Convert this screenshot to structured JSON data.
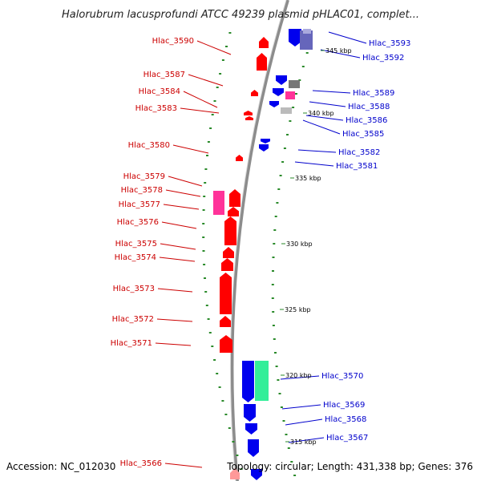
{
  "title": "Halorubrum lacusprofundi ATCC 49239 plasmid pHLAC01, complet...",
  "accession": "Accession: NC_012030",
  "footer_info": "Topology: circular; Length: 431,338 bp; Genes: 376",
  "colors": {
    "forward": "#ff0000",
    "reverse": "#0000ee",
    "magenta": "#ff3399",
    "teal": "#33ee99",
    "gray": "#777777",
    "lightgray": "#bbbbbb",
    "dots": "#2a8a2a",
    "backbone": "#999999",
    "label_forward": "#cc0000",
    "label_reverse": "#0000cc"
  },
  "ticks": [
    "345 kbp",
    "340 kbp",
    "335 kbp",
    "330 kbp",
    "325 kbp",
    "320 kbp",
    "315 kbp"
  ],
  "labels_left": [
    "Hlac_3590",
    "Hlac_3587",
    "Hlac_3584",
    "Hlac_3583",
    "Hlac_3580",
    "Hlac_3579",
    "Hlac_3578",
    "Hlac_3577",
    "Hlac_3576",
    "Hlac_3575",
    "Hlac_3574",
    "Hlac_3573",
    "Hlac_3572",
    "Hlac_3571",
    "Hlac_3566"
  ],
  "labels_right": [
    "Hlac_3593",
    "Hlac_3592",
    "Hlac_3589",
    "Hlac_3588",
    "Hlac_3586",
    "Hlac_3585",
    "Hlac_3582",
    "Hlac_3581",
    "Hlac_3570",
    "Hlac_3569",
    "Hlac_3568",
    "Hlac_3567"
  ]
}
